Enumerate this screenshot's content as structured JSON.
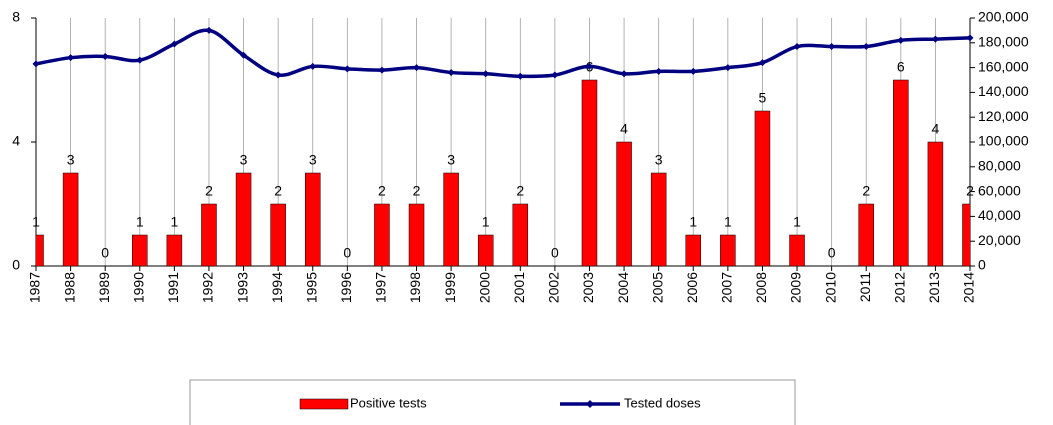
{
  "chart_data": {
    "type": "bar_line",
    "categories": [
      "1987",
      "1988",
      "1989",
      "1990",
      "1991",
      "1992",
      "1993",
      "1994",
      "1995",
      "1996",
      "1997",
      "1998",
      "1999",
      "2000",
      "2001",
      "2002",
      "2003",
      "2004",
      "2005",
      "2006",
      "2007",
      "2008",
      "2009",
      "2010",
      "2011",
      "2012",
      "2013",
      "2014"
    ],
    "series": [
      {
        "name": "Positive tests",
        "type": "bar",
        "color": "#ff0000",
        "values": [
          1,
          3,
          0,
          1,
          1,
          2,
          3,
          2,
          3,
          0,
          2,
          2,
          3,
          1,
          2,
          0,
          6,
          4,
          3,
          1,
          1,
          5,
          1,
          0,
          2,
          6,
          4,
          2
        ]
      },
      {
        "name": "Tested doses",
        "type": "line",
        "axis": "y2",
        "color": "#000080",
        "values": [
          163000,
          168000,
          169000,
          166000,
          179000,
          190000,
          170000,
          154000,
          161000,
          159000,
          158000,
          160000,
          156000,
          155000,
          153000,
          154000,
          161000,
          155000,
          157000,
          157000,
          160000,
          164000,
          177000,
          177000,
          177000,
          182000,
          183000,
          184000
        ]
      }
    ],
    "ylim": [
      0,
      8
    ],
    "yticks": [
      0,
      4,
      8
    ],
    "y2lim": [
      0,
      200000
    ],
    "y2ticks": [
      0,
      {
        "value": 20000,
        "label": "20,000"
      },
      {
        "value": 40000,
        "label": "40,000"
      },
      {
        "value": 60000,
        "label": "60,000"
      },
      {
        "value": 80000,
        "label": "80,000"
      },
      {
        "value": 100000,
        "label": "100,000"
      },
      {
        "value": 120000,
        "label": "120,000"
      },
      {
        "value": 140000,
        "label": "140,000"
      },
      {
        "value": 160000,
        "label": "160,000"
      },
      {
        "value": 180000,
        "label": "180,000"
      },
      {
        "value": 200000,
        "label": "200,000"
      }
    ],
    "grid": true,
    "legend": "bottom"
  }
}
